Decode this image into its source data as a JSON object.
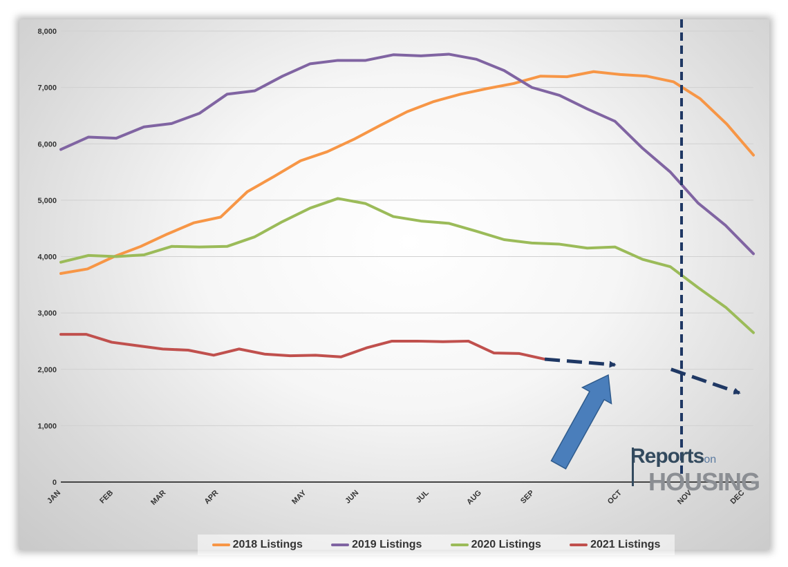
{
  "chart_data": {
    "type": "line",
    "title": "",
    "xlabel": "",
    "ylabel": "",
    "ylim": [
      0,
      8000
    ],
    "yticks": [
      0,
      1000,
      2000,
      3000,
      4000,
      5000,
      6000,
      7000,
      8000
    ],
    "ytick_labels": [
      "0",
      "1,000",
      "2,000",
      "3,000",
      "4,000",
      "5,000",
      "6,000",
      "7,000",
      "8,000"
    ],
    "x_labels": [
      "JAN",
      "FEB",
      "MAR",
      "APR",
      "MAY",
      "JUN",
      "JUL",
      "AUG",
      "SEP",
      "OCT",
      "NOV",
      "DEC"
    ],
    "x_label_weeks": [
      0,
      3,
      6,
      9,
      14,
      17,
      21,
      24,
      27,
      32,
      36,
      39
    ],
    "grid": true,
    "legend_position": "bottom",
    "series": [
      {
        "name": "2018 Listings",
        "color": "#f79646",
        "values": [
          3700,
          3780,
          4000,
          4180,
          4400,
          4600,
          4700,
          5150,
          5420,
          5700,
          5860,
          6080,
          6330,
          6570,
          6750,
          6880,
          6980,
          7070,
          7200,
          7190,
          7280,
          7230,
          7200,
          7100,
          6800,
          6350,
          5800
        ]
      },
      {
        "name": "2019 Listings",
        "color": "#8064a2",
        "values": [
          5900,
          6120,
          6100,
          6300,
          6360,
          6540,
          6880,
          6940,
          7200,
          7420,
          7480,
          7480,
          7580,
          7560,
          7590,
          7500,
          7300,
          7000,
          6860,
          6620,
          6400,
          5920,
          5500,
          4950,
          4550,
          4050
        ]
      },
      {
        "name": "2020 Listings",
        "color": "#9bbb59",
        "values": [
          3900,
          4020,
          4000,
          4030,
          4180,
          4170,
          4180,
          4350,
          4620,
          4860,
          5030,
          4940,
          4710,
          4630,
          4590,
          4450,
          4300,
          4240,
          4220,
          4150,
          4170,
          3950,
          3820,
          3450,
          3100,
          2650
        ]
      },
      {
        "name": "2021 Listings",
        "color": "#c0504d",
        "values": [
          2620,
          2620,
          2480,
          2420,
          2360,
          2340,
          2250,
          2360,
          2270,
          2240,
          2250,
          2220,
          2380,
          2500,
          2500,
          2490,
          2500,
          2290,
          2280,
          2180
        ]
      }
    ],
    "forecast_color": "#1f3864",
    "forecast_arrow_points": [
      [
        27.6,
        2180
      ],
      [
        31.6,
        2080
      ],
      [
        34.8,
        2000
      ],
      [
        38.7,
        1580
      ]
    ],
    "current_week_marker_week": 35.4,
    "highlight_arrow_color": "#4a7ebb"
  },
  "logo": {
    "line1": "Reports",
    "line1_suffix": "on",
    "line2": "HOUSING"
  }
}
